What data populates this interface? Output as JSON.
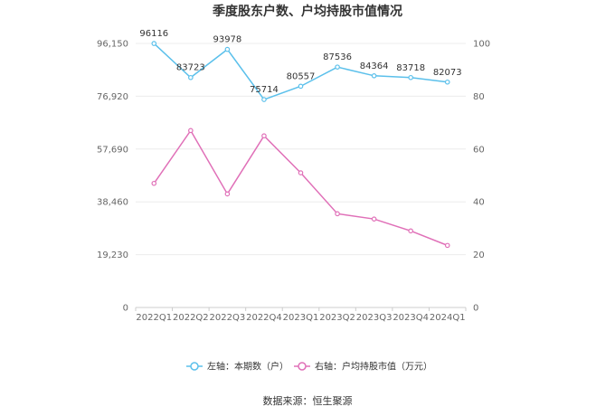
{
  "chart_data": {
    "type": "line",
    "title": "季度股东户数、户均持股市值情况",
    "categories": [
      "2022Q1",
      "2022Q2",
      "2022Q3",
      "2022Q4",
      "2023Q1",
      "2023Q2",
      "2023Q3",
      "2023Q4",
      "2024Q1"
    ],
    "left_axis": {
      "ticks": [
        "0",
        "19,230",
        "38,460",
        "57,690",
        "76,920",
        "96,150"
      ],
      "min": 0,
      "max": 96150
    },
    "right_axis": {
      "ticks": [
        "0",
        "20",
        "40",
        "60",
        "80",
        "100"
      ],
      "min": 0,
      "max": 100
    },
    "series": [
      {
        "name": "左轴：本期数（户）",
        "axis": "left",
        "color": "#5bc0eb",
        "values": [
          96116,
          83723,
          93978,
          75714,
          80557,
          87536,
          84364,
          83718,
          82073
        ],
        "labels": [
          "96116",
          "83723",
          "93978",
          "75714",
          "80557",
          "87536",
          "84364",
          "83718",
          "82073"
        ]
      },
      {
        "name": "右轴：户均持股市值（万元）",
        "axis": "right",
        "color": "#e070b8",
        "values": [
          47,
          67,
          43,
          65,
          51,
          35.5,
          33.5,
          29,
          23.5
        ]
      }
    ],
    "grid": true,
    "legend_position": "bottom"
  },
  "source": "数据来源：恒生聚源"
}
